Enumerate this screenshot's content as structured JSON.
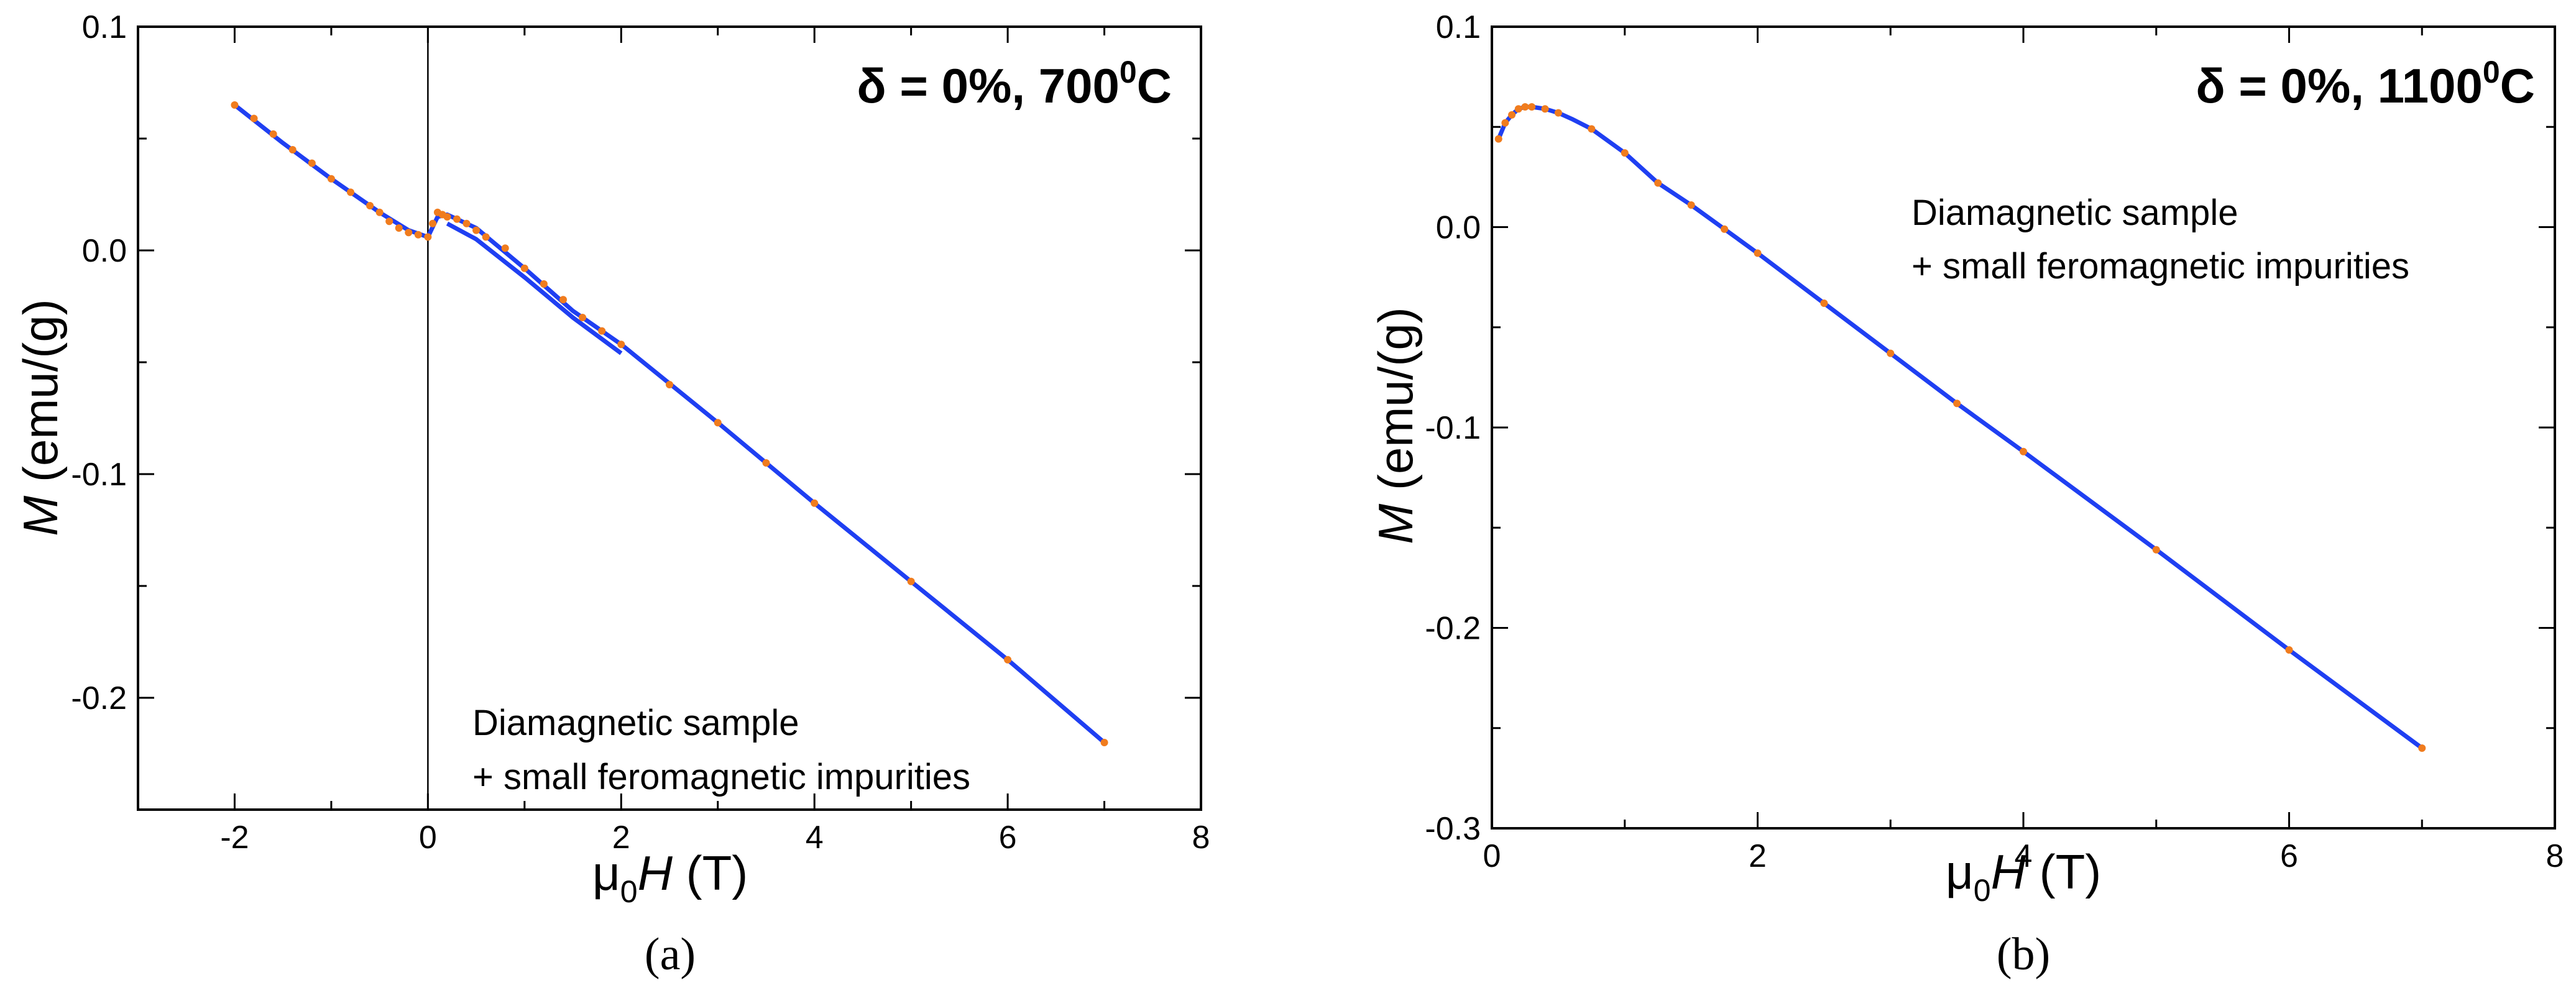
{
  "chart_data": [
    {
      "panel": "a",
      "type": "line",
      "title": "δ = 0%, 700",
      "title_sup": "0",
      "title_suffix": "C",
      "xlabel_main": "μ",
      "xlabel_sub": "0",
      "xlabel_var": "H",
      "xlabel_unit": " (T)",
      "ylabel_var": "M",
      "ylabel_unit": " (emu/(g)",
      "xlim": [
        -3,
        8
      ],
      "ylim": [
        -0.25,
        0.1
      ],
      "xticks": [
        -2,
        0,
        2,
        4,
        6,
        8
      ],
      "xtick_labels": [
        "-2",
        "0",
        "2",
        "4",
        "6",
        "8"
      ],
      "yticks": [
        -0.2,
        -0.1,
        0.0,
        0.1
      ],
      "ytick_labels": [
        "-0.2",
        "-0.1",
        "0.0",
        "0.1"
      ],
      "zero_line_x": 0,
      "annotation_line1": "Diamagnetic sample",
      "annotation_line2": "+ small feromagnetic impurities",
      "panel_label": "(a)",
      "series": [
        {
          "name": "fit",
          "color": "#1f3ff2",
          "x": [
            -2,
            -1.5,
            -1.0,
            -0.5,
            -0.2,
            0.0,
            0.1,
            0.2,
            0.5,
            1.0,
            1.5,
            2.0,
            3.0,
            4.0,
            5.0,
            6.0,
            7.0
          ],
          "y": [
            0.065,
            0.048,
            0.032,
            0.017,
            0.009,
            0.006,
            0.015,
            0.016,
            0.01,
            -0.008,
            -0.027,
            -0.042,
            -0.077,
            -0.113,
            -0.148,
            -0.183,
            -0.22
          ]
        },
        {
          "name": "fit-branch",
          "color": "#1f3ff2",
          "x": [
            0.2,
            0.5,
            1.0,
            1.5,
            2.0
          ],
          "y": [
            0.012,
            0.005,
            -0.012,
            -0.03,
            -0.046
          ]
        },
        {
          "name": "data",
          "color": "#f07c1e",
          "x": [
            -2,
            -1.8,
            -1.6,
            -1.4,
            -1.2,
            -1.0,
            -0.8,
            -0.6,
            -0.5,
            -0.4,
            -0.3,
            -0.2,
            -0.1,
            0.0,
            0.05,
            0.1,
            0.15,
            0.2,
            0.3,
            0.4,
            0.5,
            0.6,
            0.8,
            1.0,
            1.2,
            1.4,
            1.6,
            1.8,
            2.0,
            2.5,
            3.0,
            3.5,
            4.0,
            5.0,
            6.0,
            7.0
          ],
          "y": [
            0.065,
            0.059,
            0.052,
            0.045,
            0.039,
            0.032,
            0.026,
            0.02,
            0.017,
            0.013,
            0.01,
            0.008,
            0.007,
            0.006,
            0.012,
            0.017,
            0.016,
            0.015,
            0.014,
            0.012,
            0.009,
            0.006,
            0.001,
            -0.008,
            -0.015,
            -0.022,
            -0.03,
            -0.036,
            -0.042,
            -0.06,
            -0.077,
            -0.095,
            -0.113,
            -0.148,
            -0.183,
            -0.22
          ]
        }
      ]
    },
    {
      "panel": "b",
      "type": "line",
      "title": "δ = 0%, 1100",
      "title_sup": "0",
      "title_suffix": "C",
      "xlabel_main": "μ",
      "xlabel_sub": "0",
      "xlabel_var": "H",
      "xlabel_unit": " (T)",
      "ylabel_var": "M",
      "ylabel_unit": " (emu/(g)",
      "xlim": [
        0,
        8
      ],
      "ylim": [
        -0.3,
        0.1
      ],
      "xticks": [
        0,
        2,
        4,
        6,
        8
      ],
      "xtick_labels": [
        "0",
        "2",
        "4",
        "6",
        "8"
      ],
      "yticks": [
        -0.3,
        -0.2,
        -0.1,
        0.0,
        0.1
      ],
      "ytick_labels": [
        "-0.3",
        "-0.2",
        "-0.1",
        "0.0",
        "0.1"
      ],
      "annotation_line1": "Diamagnetic sample",
      "annotation_line2": "+ small feromagnetic impurities",
      "panel_label": "(b)",
      "series": [
        {
          "name": "fit",
          "color": "#1f3ff2",
          "x": [
            0.05,
            0.1,
            0.15,
            0.2,
            0.25,
            0.3,
            0.4,
            0.5,
            0.6,
            0.75,
            1.0,
            1.25,
            1.5,
            1.75,
            2.0,
            2.5,
            3.0,
            3.5,
            4.0,
            5.0,
            6.0,
            7.0
          ],
          "y": [
            0.044,
            0.052,
            0.056,
            0.059,
            0.06,
            0.06,
            0.059,
            0.057,
            0.054,
            0.049,
            0.037,
            0.022,
            0.011,
            -0.001,
            -0.013,
            -0.038,
            -0.063,
            -0.088,
            -0.112,
            -0.161,
            -0.211,
            -0.26
          ]
        },
        {
          "name": "data",
          "color": "#f07c1e",
          "x": [
            0.05,
            0.1,
            0.15,
            0.2,
            0.25,
            0.3,
            0.4,
            0.5,
            0.75,
            1.0,
            1.25,
            1.5,
            1.75,
            2.0,
            2.5,
            3.0,
            3.5,
            4.0,
            5.0,
            6.0,
            7.0
          ],
          "y": [
            0.044,
            0.052,
            0.056,
            0.059,
            0.06,
            0.06,
            0.059,
            0.057,
            0.049,
            0.037,
            0.022,
            0.011,
            -0.001,
            -0.013,
            -0.038,
            -0.063,
            -0.088,
            -0.112,
            -0.161,
            -0.211,
            -0.26
          ]
        }
      ]
    }
  ]
}
